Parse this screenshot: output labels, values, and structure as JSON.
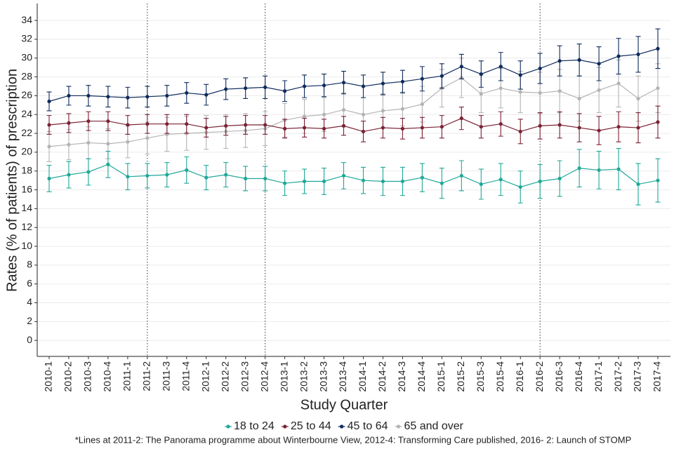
{
  "chart_data": {
    "type": "line",
    "x_label": "Study Quarter",
    "y_label": "Rates (% of patients) of prescription",
    "footnote": "*Lines at 2011-2: The Panorama programme about Winterbourne View, 2012-4: Transforming Care published, 2016- 2: Launch of STOMP",
    "categories": [
      "2010-1",
      "2010-2",
      "2010-3",
      "2010-4",
      "2011-1",
      "2011-2",
      "2011-3",
      "2011-4",
      "2012-1",
      "2012-2",
      "2012-3",
      "2012-4",
      "2013-1",
      "2013-2",
      "2013-3",
      "2013-4",
      "2014-1",
      "2014-2",
      "2014-3",
      "2014-4",
      "2015-1",
      "2015-2",
      "2015-3",
      "2015-4",
      "2016-1",
      "2016-2",
      "2016-3",
      "2016-4",
      "2017-1",
      "2017-2",
      "2017-3",
      "2017-4"
    ],
    "vlines": [
      "2011-2",
      "2012-4",
      "2016-2"
    ],
    "ylim": [
      -1.7,
      35.8
    ],
    "yticks": [
      0,
      2,
      4,
      6,
      8,
      10,
      12,
      14,
      16,
      18,
      20,
      22,
      24,
      26,
      28,
      30,
      32,
      34
    ],
    "grid": true,
    "legend": "bottom",
    "series": [
      {
        "name": "18 to 24",
        "color": "#1fa898",
        "values": [
          17.2,
          17.6,
          17.9,
          18.7,
          17.4,
          17.5,
          17.6,
          18.1,
          17.3,
          17.6,
          17.2,
          17.2,
          16.7,
          16.9,
          16.9,
          17.5,
          17.0,
          16.9,
          16.9,
          17.3,
          16.7,
          17.5,
          16.6,
          17.1,
          16.3,
          16.9,
          17.2,
          18.3,
          18.1,
          18.2,
          16.6,
          17.0
        ],
        "errors": [
          1.4,
          1.4,
          1.4,
          1.4,
          1.4,
          1.3,
          1.3,
          1.4,
          1.3,
          1.3,
          1.3,
          1.3,
          1.3,
          1.3,
          1.4,
          1.4,
          1.4,
          1.5,
          1.5,
          1.5,
          1.6,
          1.6,
          1.6,
          1.7,
          1.7,
          1.8,
          1.9,
          2.0,
          2.0,
          2.2,
          2.2,
          2.3
        ]
      },
      {
        "name": "25 to 44",
        "color": "#7a2234",
        "values": [
          22.9,
          23.1,
          23.3,
          23.3,
          22.9,
          23.0,
          23.0,
          23.0,
          22.6,
          22.8,
          22.9,
          22.9,
          22.5,
          22.6,
          22.5,
          22.8,
          22.2,
          22.6,
          22.5,
          22.6,
          22.7,
          23.6,
          22.7,
          23.0,
          22.2,
          22.8,
          22.9,
          22.6,
          22.3,
          22.7,
          22.6,
          23.2
        ],
        "errors": [
          1.0,
          1.0,
          1.0,
          1.0,
          1.0,
          1.0,
          1.0,
          1.0,
          1.0,
          1.0,
          1.0,
          1.0,
          1.0,
          1.0,
          1.0,
          1.0,
          1.1,
          1.1,
          1.1,
          1.1,
          1.2,
          1.2,
          1.2,
          1.3,
          1.3,
          1.4,
          1.4,
          1.5,
          1.5,
          1.6,
          1.6,
          1.7
        ]
      },
      {
        "name": "45 to 64",
        "color": "#0e2a5c",
        "values": [
          25.4,
          26.0,
          26.0,
          25.9,
          25.8,
          25.9,
          26.0,
          26.3,
          26.1,
          26.7,
          26.8,
          26.9,
          26.5,
          27.0,
          27.1,
          27.4,
          27.0,
          27.3,
          27.5,
          27.8,
          28.1,
          29.1,
          28.3,
          29.1,
          28.2,
          28.9,
          29.7,
          29.8,
          29.4,
          30.2,
          30.4,
          31.0
        ],
        "errors": [
          1.0,
          1.0,
          1.1,
          1.1,
          1.1,
          1.1,
          1.1,
          1.1,
          1.1,
          1.1,
          1.1,
          1.2,
          1.1,
          1.2,
          1.2,
          1.2,
          1.2,
          1.2,
          1.2,
          1.3,
          1.3,
          1.3,
          1.4,
          1.5,
          1.5,
          1.6,
          1.6,
          1.7,
          1.8,
          1.9,
          1.9,
          2.1
        ]
      },
      {
        "name": "65 and over",
        "color": "#b4b4b4",
        "values": [
          20.6,
          20.8,
          21.0,
          20.9,
          21.1,
          21.5,
          21.9,
          22.0,
          22.1,
          22.2,
          22.3,
          22.5,
          23.4,
          23.8,
          24.0,
          24.5,
          24.0,
          24.4,
          24.6,
          25.1,
          26.8,
          27.9,
          26.2,
          26.8,
          26.4,
          26.3,
          26.5,
          25.7,
          26.6,
          27.3,
          25.7,
          26.8
        ],
        "errors": [
          1.6,
          1.6,
          1.7,
          1.6,
          1.7,
          1.7,
          1.8,
          1.8,
          1.8,
          1.8,
          1.8,
          1.8,
          1.8,
          1.8,
          1.8,
          1.8,
          1.8,
          1.8,
          1.8,
          1.9,
          2.0,
          2.1,
          2.0,
          2.1,
          2.2,
          2.2,
          2.3,
          2.4,
          2.4,
          2.5,
          2.4,
          2.6
        ]
      }
    ]
  }
}
